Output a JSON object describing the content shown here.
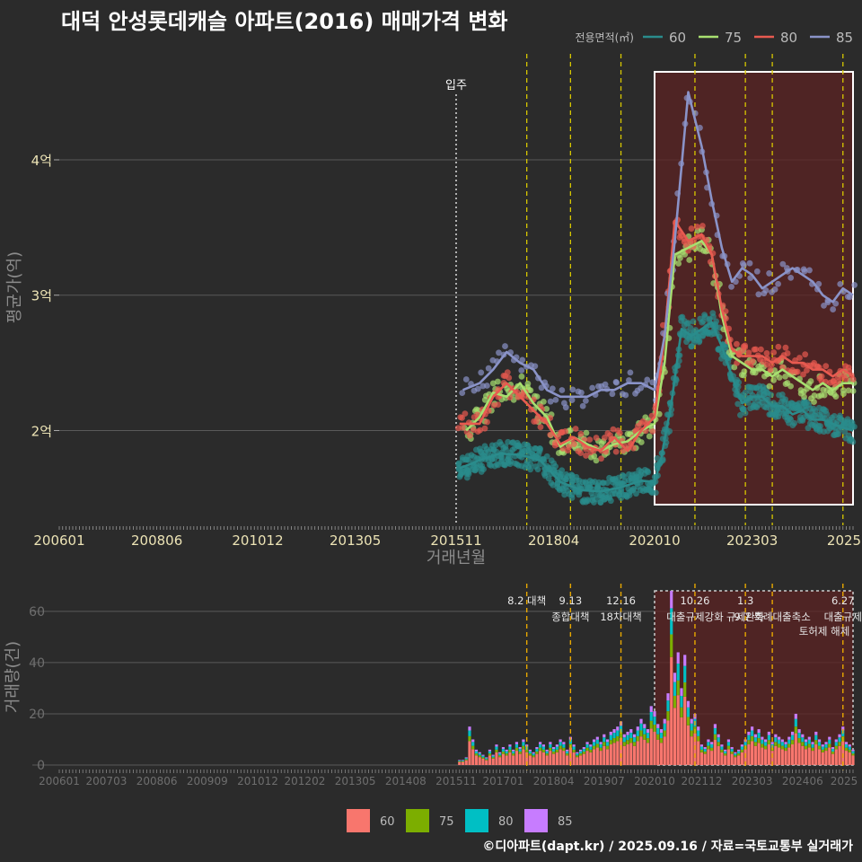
{
  "title": "대덕 안성롯데캐슬 아파트(2016) 매매가격 변화",
  "credit": "©디아파트(dapt.kr) / 2025.09.16 / 자료=국토교통부 실거래가",
  "colors": {
    "background": "#2b2b2b",
    "grid": "#5a5a5a",
    "axis_text_top": "#ece3b5",
    "axis_text_bottom": "#6e6e6e",
    "axis_title": "#8c8c8c",
    "policy_line": "#d8c800",
    "policy_line_bottom": "#e8a800",
    "highlight_fill": "#5c2323",
    "highlight_border": "#ffffff"
  },
  "chart_data": [
    {
      "type": "line",
      "id": "price",
      "xlabel": "거래년월",
      "ylabel": "평균가(억)",
      "ylim": [
        1.3,
        4.65
      ],
      "y_ticks": [
        2,
        3,
        4
      ],
      "y_tick_labels": [
        "2억",
        "3억",
        "4억"
      ],
      "x_range": [
        "2006-01",
        "2025-09"
      ],
      "x_tick_labels": [
        "200601",
        "200806",
        "201012",
        "201305",
        "201511",
        "201804",
        "202010",
        "202303",
        "2025"
      ],
      "legend_title": "전용면적(㎡)",
      "legend_position": "top-right",
      "move_in_label": "입주",
      "move_in_date": "2015-11",
      "highlight_range": [
        "2020-10",
        "2025-09"
      ],
      "policy_dates": [
        "2017-08",
        "2018-09",
        "2019-12",
        "2021-10",
        "2023-01",
        "2023-09",
        "2025-06"
      ],
      "series": [
        {
          "name": "60",
          "color": "#2a8c8c",
          "points": [
            [
              "2015-12",
              1.72
            ],
            [
              "2016-06",
              1.78
            ],
            [
              "2016-12",
              1.83
            ],
            [
              "2017-06",
              1.82
            ],
            [
              "2017-12",
              1.78
            ],
            [
              "2018-06",
              1.62
            ],
            [
              "2018-12",
              1.56
            ],
            [
              "2019-06",
              1.55
            ],
            [
              "2019-12",
              1.58
            ],
            [
              "2020-06",
              1.63
            ],
            [
              "2020-10",
              1.62
            ],
            [
              "2020-12",
              1.8
            ],
            [
              "2021-03",
              2.2
            ],
            [
              "2021-06",
              2.75
            ],
            [
              "2021-09",
              2.7
            ],
            [
              "2021-12",
              2.75
            ],
            [
              "2022-03",
              2.8
            ],
            [
              "2022-06",
              2.62
            ],
            [
              "2022-09",
              2.4
            ],
            [
              "2022-12",
              2.2
            ],
            [
              "2023-03",
              2.25
            ],
            [
              "2023-06",
              2.25
            ],
            [
              "2023-09",
              2.18
            ],
            [
              "2023-12",
              2.18
            ],
            [
              "2024-03",
              2.12
            ],
            [
              "2024-06",
              2.15
            ],
            [
              "2024-09",
              2.08
            ],
            [
              "2024-12",
              2.08
            ],
            [
              "2025-03",
              2.05
            ],
            [
              "2025-06",
              2.02
            ],
            [
              "2025-09",
              2.0
            ]
          ]
        },
        {
          "name": "75",
          "color": "#a8e070",
          "points": [
            [
              "2016-02",
              2.0
            ],
            [
              "2016-06",
              2.1
            ],
            [
              "2016-10",
              2.28
            ],
            [
              "2017-02",
              2.25
            ],
            [
              "2017-06",
              2.35
            ],
            [
              "2017-10",
              2.2
            ],
            [
              "2018-02",
              2.1
            ],
            [
              "2018-06",
              1.88
            ],
            [
              "2018-10",
              1.95
            ],
            [
              "2019-02",
              1.9
            ],
            [
              "2019-06",
              1.85
            ],
            [
              "2019-10",
              1.9
            ],
            [
              "2020-02",
              1.92
            ],
            [
              "2020-06",
              2.0
            ],
            [
              "2020-10",
              2.05
            ],
            [
              "2021-01",
              2.5
            ],
            [
              "2021-04",
              3.3
            ],
            [
              "2021-08",
              3.35
            ],
            [
              "2021-12",
              3.4
            ],
            [
              "2022-03",
              3.3
            ],
            [
              "2022-06",
              2.85
            ],
            [
              "2022-09",
              2.55
            ],
            [
              "2022-12",
              2.5
            ],
            [
              "2023-03",
              2.45
            ],
            [
              "2023-06",
              2.45
            ],
            [
              "2023-09",
              2.4
            ],
            [
              "2023-12",
              2.45
            ],
            [
              "2024-03",
              2.4
            ],
            [
              "2024-06",
              2.35
            ],
            [
              "2024-09",
              2.3
            ],
            [
              "2024-12",
              2.35
            ],
            [
              "2025-03",
              2.3
            ],
            [
              "2025-06",
              2.35
            ],
            [
              "2025-09",
              2.35
            ]
          ]
        },
        {
          "name": "80",
          "color": "#e85a50",
          "points": [
            [
              "2015-12",
              2.05
            ],
            [
              "2016-06",
              2.05
            ],
            [
              "2016-10",
              2.25
            ],
            [
              "2017-02",
              2.35
            ],
            [
              "2017-06",
              2.25
            ],
            [
              "2017-10",
              2.15
            ],
            [
              "2018-02",
              2.05
            ],
            [
              "2018-06",
              1.9
            ],
            [
              "2018-10",
              1.95
            ],
            [
              "2019-02",
              1.88
            ],
            [
              "2019-06",
              1.85
            ],
            [
              "2019-10",
              1.95
            ],
            [
              "2020-02",
              1.85
            ],
            [
              "2020-06",
              2.0
            ],
            [
              "2020-10",
              2.1
            ],
            [
              "2021-01",
              2.7
            ],
            [
              "2021-04",
              3.55
            ],
            [
              "2021-08",
              3.4
            ],
            [
              "2021-12",
              3.45
            ],
            [
              "2022-03",
              3.3
            ],
            [
              "2022-06",
              2.9
            ],
            [
              "2022-09",
              2.6
            ],
            [
              "2022-12",
              2.55
            ],
            [
              "2023-03",
              2.55
            ],
            [
              "2023-06",
              2.55
            ],
            [
              "2023-09",
              2.5
            ],
            [
              "2023-12",
              2.55
            ],
            [
              "2024-03",
              2.5
            ],
            [
              "2024-06",
              2.5
            ],
            [
              "2024-09",
              2.45
            ],
            [
              "2024-12",
              2.45
            ],
            [
              "2025-03",
              2.4
            ],
            [
              "2025-06",
              2.45
            ],
            [
              "2025-09",
              2.4
            ]
          ]
        },
        {
          "name": "85",
          "color": "#8a93c8",
          "points": [
            [
              "2016-01",
              2.3
            ],
            [
              "2016-06",
              2.35
            ],
            [
              "2016-10",
              2.45
            ],
            [
              "2017-02",
              2.58
            ],
            [
              "2017-06",
              2.5
            ],
            [
              "2017-10",
              2.45
            ],
            [
              "2018-02",
              2.3
            ],
            [
              "2018-06",
              2.25
            ],
            [
              "2018-10",
              2.25
            ],
            [
              "2019-02",
              2.25
            ],
            [
              "2019-06",
              2.3
            ],
            [
              "2019-10",
              2.3
            ],
            [
              "2020-02",
              2.35
            ],
            [
              "2020-06",
              2.35
            ],
            [
              "2020-10",
              2.3
            ],
            [
              "2021-01",
              2.7
            ],
            [
              "2021-04",
              3.4
            ],
            [
              "2021-08",
              4.5
            ],
            [
              "2021-12",
              4.1
            ],
            [
              "2022-03",
              3.7
            ],
            [
              "2022-06",
              3.35
            ],
            [
              "2022-09",
              3.1
            ],
            [
              "2022-12",
              3.2
            ],
            [
              "2023-03",
              3.15
            ],
            [
              "2023-06",
              3.05
            ],
            [
              "2023-09",
              3.1
            ],
            [
              "2023-12",
              3.15
            ],
            [
              "2024-03",
              3.2
            ],
            [
              "2024-06",
              3.15
            ],
            [
              "2024-09",
              3.1
            ],
            [
              "2024-12",
              3.0
            ],
            [
              "2025-03",
              2.95
            ],
            [
              "2025-06",
              3.05
            ],
            [
              "2025-09",
              3.0
            ]
          ]
        }
      ]
    },
    {
      "type": "bar",
      "id": "volume",
      "stacked": true,
      "ylabel": "거래량(건)",
      "ylim": [
        0,
        68
      ],
      "y_ticks": [
        0,
        20,
        40,
        60
      ],
      "x_tick_labels": [
        "200601",
        "200703",
        "200806",
        "200909",
        "201012",
        "201202",
        "201305",
        "201408",
        "201511",
        "201701",
        "201804",
        "201907",
        "202010",
        "202112",
        "202303",
        "202406",
        "2025"
      ],
      "legend_position": "bottom",
      "series": [
        {
          "name": "60",
          "color": "#f8766d"
        },
        {
          "name": "75",
          "color": "#7cae00"
        },
        {
          "name": "80",
          "color": "#00bfc4"
        },
        {
          "name": "85",
          "color": "#c77cff"
        }
      ],
      "monthly_totals": [
        [
          "2015-12",
          2
        ],
        [
          "2016-01",
          2
        ],
        [
          "2016-02",
          3
        ],
        [
          "2016-03",
          15
        ],
        [
          "2016-04",
          10
        ],
        [
          "2016-05",
          6
        ],
        [
          "2016-06",
          5
        ],
        [
          "2016-07",
          4
        ],
        [
          "2016-08",
          3
        ],
        [
          "2016-09",
          6
        ],
        [
          "2016-10",
          4
        ],
        [
          "2016-11",
          8
        ],
        [
          "2016-12",
          5
        ],
        [
          "2017-01",
          7
        ],
        [
          "2017-02",
          6
        ],
        [
          "2017-03",
          8
        ],
        [
          "2017-04",
          6
        ],
        [
          "2017-05",
          9
        ],
        [
          "2017-06",
          7
        ],
        [
          "2017-07",
          10
        ],
        [
          "2017-08",
          8
        ],
        [
          "2017-09",
          6
        ],
        [
          "2017-10",
          5
        ],
        [
          "2017-11",
          7
        ],
        [
          "2017-12",
          9
        ],
        [
          "2018-01",
          8
        ],
        [
          "2018-02",
          6
        ],
        [
          "2018-03",
          9
        ],
        [
          "2018-04",
          7
        ],
        [
          "2018-05",
          8
        ],
        [
          "2018-06",
          10
        ],
        [
          "2018-07",
          9
        ],
        [
          "2018-08",
          6
        ],
        [
          "2018-09",
          11
        ],
        [
          "2018-10",
          8
        ],
        [
          "2018-11",
          5
        ],
        [
          "2018-12",
          6
        ],
        [
          "2019-01",
          7
        ],
        [
          "2019-02",
          9
        ],
        [
          "2019-03",
          8
        ],
        [
          "2019-04",
          10
        ],
        [
          "2019-05",
          11
        ],
        [
          "2019-06",
          9
        ],
        [
          "2019-07",
          12
        ],
        [
          "2019-08",
          10
        ],
        [
          "2019-09",
          13
        ],
        [
          "2019-10",
          14
        ],
        [
          "2019-11",
          15
        ],
        [
          "2019-12",
          17
        ],
        [
          "2020-01",
          12
        ],
        [
          "2020-02",
          13
        ],
        [
          "2020-03",
          14
        ],
        [
          "2020-04",
          12
        ],
        [
          "2020-05",
          15
        ],
        [
          "2020-06",
          18
        ],
        [
          "2020-07",
          16
        ],
        [
          "2020-08",
          14
        ],
        [
          "2020-09",
          23
        ],
        [
          "2020-10",
          21
        ],
        [
          "2020-11",
          16
        ],
        [
          "2020-12",
          14
        ],
        [
          "2021-01",
          18
        ],
        [
          "2021-02",
          28
        ],
        [
          "2021-03",
          68
        ],
        [
          "2021-04",
          36
        ],
        [
          "2021-05",
          44
        ],
        [
          "2021-06",
          30
        ],
        [
          "2021-07",
          43
        ],
        [
          "2021-08",
          25
        ],
        [
          "2021-09",
          18
        ],
        [
          "2021-10",
          20
        ],
        [
          "2021-11",
          15
        ],
        [
          "2021-12",
          8
        ],
        [
          "2022-01",
          7
        ],
        [
          "2022-02",
          10
        ],
        [
          "2022-03",
          9
        ],
        [
          "2022-04",
          16
        ],
        [
          "2022-05",
          12
        ],
        [
          "2022-06",
          8
        ],
        [
          "2022-07",
          6
        ],
        [
          "2022-08",
          10
        ],
        [
          "2022-09",
          7
        ],
        [
          "2022-10",
          5
        ],
        [
          "2022-11",
          6
        ],
        [
          "2022-12",
          8
        ],
        [
          "2023-01",
          10
        ],
        [
          "2023-02",
          13
        ],
        [
          "2023-03",
          15
        ],
        [
          "2023-04",
          12
        ],
        [
          "2023-05",
          14
        ],
        [
          "2023-06",
          11
        ],
        [
          "2023-07",
          10
        ],
        [
          "2023-08",
          13
        ],
        [
          "2023-09",
          9
        ],
        [
          "2023-10",
          12
        ],
        [
          "2023-11",
          11
        ],
        [
          "2023-12",
          10
        ],
        [
          "2024-01",
          9
        ],
        [
          "2024-02",
          11
        ],
        [
          "2024-03",
          13
        ],
        [
          "2024-04",
          20
        ],
        [
          "2024-05",
          14
        ],
        [
          "2024-06",
          12
        ],
        [
          "2024-07",
          10
        ],
        [
          "2024-08",
          11
        ],
        [
          "2024-09",
          9
        ],
        [
          "2024-10",
          13
        ],
        [
          "2024-11",
          10
        ],
        [
          "2024-12",
          8
        ],
        [
          "2025-01",
          9
        ],
        [
          "2025-02",
          11
        ],
        [
          "2025-03",
          7
        ],
        [
          "2025-04",
          10
        ],
        [
          "2025-05",
          12
        ],
        [
          "2025-06",
          15
        ],
        [
          "2025-07",
          9
        ],
        [
          "2025-08",
          8
        ],
        [
          "2025-09",
          6
        ]
      ],
      "policy_annotations": [
        {
          "date": "2017-08",
          "line1": "8.2 대책",
          "line2": ""
        },
        {
          "date": "2018-09",
          "line1": "9.13",
          "line2": "종합대책"
        },
        {
          "date": "2019-12",
          "line1": "12.16",
          "line2": "18차대책"
        },
        {
          "date": "2021-10",
          "line1": "10.26",
          "line2": "대출규제강화"
        },
        {
          "date": "2023-01",
          "line1": "1.3",
          "line2": "규제완화"
        },
        {
          "date": "2023-09",
          "line1": "",
          "line2": "9.7 특례대출축소"
        },
        {
          "date": "2025-06",
          "line1": "6.27",
          "line2": "대출규제"
        }
      ],
      "extra_annotation": "토허제 해제"
    }
  ]
}
